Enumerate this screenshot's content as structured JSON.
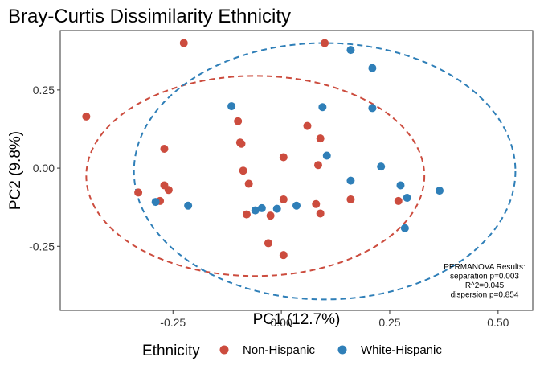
{
  "chart_data": {
    "type": "scatter",
    "title": "Bray-Curtis Dissimilarity Ethnicity",
    "xlabel": "PC1 (12.7%)",
    "ylabel": "PC2 (9.8%)",
    "xlim": [
      -0.51,
      0.58
    ],
    "ylim": [
      -0.455,
      0.44
    ],
    "x_ticks": [
      -0.25,
      0.0,
      0.25,
      0.5
    ],
    "x_tick_labels": [
      "-0.25",
      "0.00",
      "0.25",
      "0.50"
    ],
    "y_ticks": [
      -0.25,
      0.0,
      0.25
    ],
    "y_tick_labels": [
      "-0.25",
      "0.00",
      "0.25"
    ],
    "grid": false,
    "legend": {
      "title": "Ethnicity",
      "position": "bottom",
      "entries": [
        "Non-Hispanic",
        "White-Hispanic"
      ]
    },
    "colors": {
      "Non-Hispanic": "#cc4c3e",
      "White-Hispanic": "#2f7fb8"
    },
    "annotation": {
      "lines": [
        "PERMANOVA Results:",
        "separation p=0.003",
        "R^2=0.045",
        "dispersion p=0.854"
      ]
    },
    "series": [
      {
        "name": "Non-Hispanic",
        "points": [
          [
            -0.225,
            0.4
          ],
          [
            0.1,
            0.4
          ],
          [
            -0.45,
            0.165
          ],
          [
            -0.27,
            0.062
          ],
          [
            -0.1,
            0.15
          ],
          [
            -0.095,
            0.082
          ],
          [
            -0.092,
            0.078
          ],
          [
            -0.088,
            -0.008
          ],
          [
            0.06,
            0.135
          ],
          [
            0.09,
            0.095
          ],
          [
            0.085,
            0.01
          ],
          [
            0.005,
            0.035
          ],
          [
            -0.075,
            -0.05
          ],
          [
            -0.27,
            -0.055
          ],
          [
            -0.26,
            -0.07
          ],
          [
            -0.33,
            -0.078
          ],
          [
            -0.28,
            -0.105
          ],
          [
            0.005,
            -0.1
          ],
          [
            0.08,
            -0.115
          ],
          [
            0.16,
            -0.1
          ],
          [
            0.27,
            -0.105
          ],
          [
            -0.08,
            -0.148
          ],
          [
            -0.025,
            -0.152
          ],
          [
            0.09,
            -0.145
          ],
          [
            -0.03,
            -0.24
          ],
          [
            0.005,
            -0.278
          ]
        ],
        "ellipse": {
          "center": [
            -0.06,
            -0.025
          ],
          "half_width": 0.39,
          "half_height": 0.32
        }
      },
      {
        "name": "White-Hispanic",
        "points": [
          [
            0.16,
            0.378
          ],
          [
            0.21,
            0.32
          ],
          [
            -0.115,
            0.198
          ],
          [
            0.095,
            0.195
          ],
          [
            0.21,
            0.192
          ],
          [
            0.105,
            0.04
          ],
          [
            0.23,
            0.005
          ],
          [
            0.16,
            -0.04
          ],
          [
            0.275,
            -0.055
          ],
          [
            0.29,
            -0.095
          ],
          [
            0.365,
            -0.072
          ],
          [
            -0.215,
            -0.12
          ],
          [
            -0.29,
            -0.108
          ],
          [
            -0.06,
            -0.135
          ],
          [
            -0.045,
            -0.128
          ],
          [
            -0.01,
            -0.13
          ],
          [
            0.035,
            -0.12
          ],
          [
            0.285,
            -0.192
          ]
        ],
        "ellipse": {
          "center": [
            0.1,
            -0.01
          ],
          "half_width": 0.44,
          "half_height": 0.41
        }
      }
    ]
  }
}
